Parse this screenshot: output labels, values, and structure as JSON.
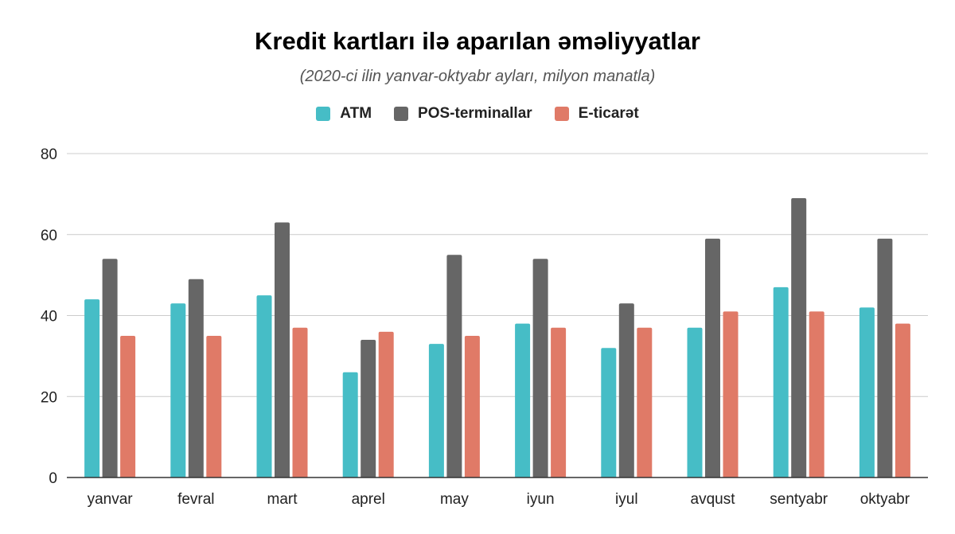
{
  "chart_data": {
    "type": "bar",
    "title": "Kredit kartları ilə aparılan əməliyyatlar",
    "subtitle": "(2020-ci ilin yanvar-oktyabr ayları, milyon manatla)",
    "categories": [
      "yanvar",
      "fevral",
      "mart",
      "aprel",
      "may",
      "iyun",
      "iyul",
      "avqust",
      "sentyabr",
      "oktyabr"
    ],
    "series": [
      {
        "name": "ATM",
        "color": "#46bdc6",
        "values": [
          44,
          43,
          45,
          26,
          33,
          38,
          32,
          37,
          47,
          42
        ]
      },
      {
        "name": "POS-terminallar",
        "color": "#666666",
        "values": [
          54,
          49,
          63,
          34,
          55,
          54,
          43,
          59,
          69,
          59
        ]
      },
      {
        "name": "E-ticarət",
        "color": "#e07a67",
        "values": [
          35,
          35,
          37,
          36,
          35,
          37,
          37,
          41,
          41,
          38
        ]
      }
    ],
    "xlabel": "",
    "ylabel": "",
    "ylim": [
      0,
      80
    ],
    "yticks": [
      0,
      20,
      40,
      60,
      80
    ],
    "grid": true,
    "legend_position": "top"
  }
}
